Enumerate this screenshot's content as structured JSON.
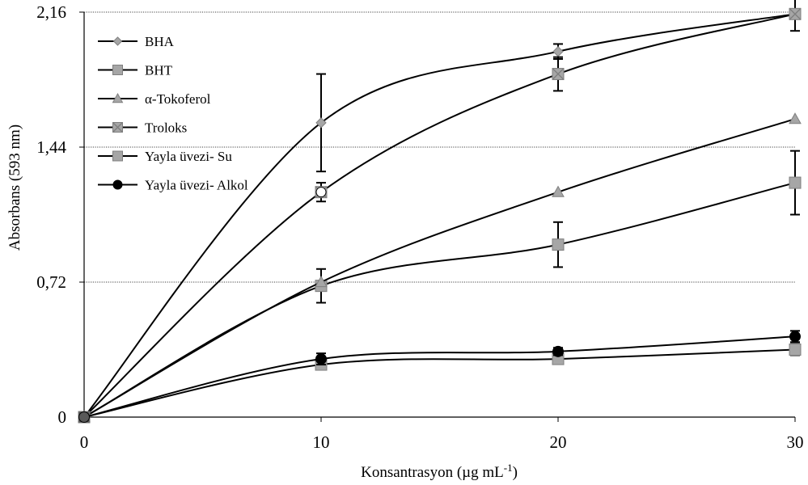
{
  "chart_data": {
    "type": "line",
    "title": "",
    "xlabel": "Konsantrasyon  (µg mL",
    "xlabel_sup": "-1",
    "xlabel_close": ")",
    "ylabel": "Absorbans  (593 nm)",
    "xlim": [
      0,
      30
    ],
    "ylim": [
      0,
      2.16
    ],
    "x_ticks": [
      0,
      10,
      20,
      30
    ],
    "x_tick_labels": [
      "0",
      "10",
      "20",
      "30"
    ],
    "y_ticks": [
      0,
      0.72,
      1.44,
      2.16
    ],
    "y_tick_labels": [
      "0",
      "0,72",
      "1,44",
      "2,16"
    ],
    "grid": "horizontal dotted",
    "legend_position": "top-left",
    "series": [
      {
        "name": "BHA",
        "marker": "diamond",
        "color": "#a6a6a6",
        "x": [
          0,
          10,
          20,
          30
        ],
        "y": [
          0,
          1.57,
          1.95,
          2.15
        ],
        "err": [
          0,
          0.26,
          0.04,
          0
        ]
      },
      {
        "name": "BHT",
        "marker": "square",
        "color": "#a6a6a6",
        "x": [
          0,
          10,
          20,
          30
        ],
        "y": [
          0,
          0.7,
          0.92,
          1.25
        ],
        "err": [
          0,
          0.09,
          0.12,
          0.17
        ]
      },
      {
        "name": "α-Tokoferol",
        "marker": "triangle",
        "color": "#a6a6a6",
        "x": [
          0,
          10,
          20,
          30
        ],
        "y": [
          0,
          0.72,
          1.2,
          1.59
        ],
        "err": [
          0,
          0,
          0,
          0
        ]
      },
      {
        "name": "Troloks",
        "marker": "square-x",
        "color": "#a6a6a6",
        "x": [
          0,
          10,
          20,
          30
        ],
        "y": [
          0,
          1.2,
          1.83,
          2.15
        ],
        "err": [
          0,
          0.05,
          0.09,
          0.09
        ]
      },
      {
        "name": "Yayla üvezi- Su",
        "marker": "square",
        "color": "#a6a6a6",
        "x": [
          0,
          10,
          20,
          30
        ],
        "y": [
          0,
          0.28,
          0.31,
          0.36
        ],
        "err": [
          0,
          0.02,
          0.01,
          0.03
        ]
      },
      {
        "name": "Yayla üvezi- Alkol",
        "marker": "circle",
        "color": "#000000",
        "x": [
          0,
          10,
          20,
          30
        ],
        "y": [
          0,
          0.31,
          0.35,
          0.43
        ],
        "err": [
          0,
          0.03,
          0.02,
          0.03
        ]
      }
    ]
  }
}
